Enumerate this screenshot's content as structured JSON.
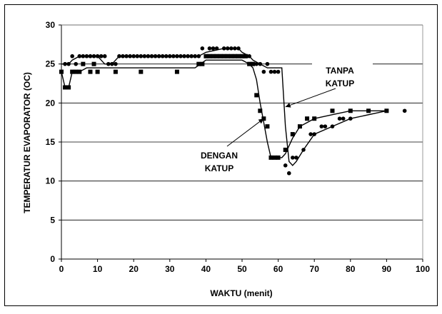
{
  "chart_data": {
    "type": "scatter",
    "xlabel": "WAKTU (menit)",
    "ylabel": "TEMPERATUR EVAPORATOR (OC)",
    "xlim": [
      0,
      100
    ],
    "ylim": [
      0,
      30
    ],
    "x_ticks": [
      "0",
      "10",
      "20",
      "30",
      "40",
      "50",
      "60",
      "70",
      "80",
      "90",
      "100"
    ],
    "y_ticks": [
      "0",
      "5",
      "10",
      "15",
      "20",
      "25",
      "30"
    ],
    "grid": "horizontal",
    "legend": "none",
    "annotations": [
      {
        "lines": [
          "TANPA",
          "KATUP"
        ],
        "points_to": [
          62,
          19.5
        ]
      },
      {
        "lines": [
          "DENGAN",
          "KATUP"
        ],
        "points_to": [
          56,
          18
        ]
      }
    ],
    "series": [
      {
        "marker": "square",
        "trend": [
          [
            0,
            24
          ],
          [
            1,
            22
          ],
          [
            2,
            22
          ],
          [
            3,
            24
          ],
          [
            5,
            24
          ],
          [
            7,
            24.5
          ],
          [
            10,
            24.5
          ],
          [
            20,
            24.5
          ],
          [
            30,
            24.5
          ],
          [
            37,
            24.5
          ],
          [
            40,
            25.5
          ],
          [
            45,
            25.5
          ],
          [
            50,
            25.5
          ],
          [
            52,
            25
          ],
          [
            53,
            24.5
          ],
          [
            54,
            23
          ],
          [
            55,
            20
          ],
          [
            56,
            17.5
          ],
          [
            57,
            15
          ],
          [
            58,
            13
          ],
          [
            61,
            13
          ],
          [
            62,
            13.5
          ],
          [
            64,
            15.5
          ],
          [
            66,
            17
          ],
          [
            68,
            17.5
          ],
          [
            70,
            18
          ],
          [
            75,
            18.5
          ],
          [
            80,
            19
          ],
          [
            90,
            19
          ]
        ],
        "points": [
          [
            0,
            24
          ],
          [
            1,
            22
          ],
          [
            2,
            22
          ],
          [
            3,
            24
          ],
          [
            4,
            24
          ],
          [
            5,
            24
          ],
          [
            6,
            25
          ],
          [
            8,
            24
          ],
          [
            9,
            25
          ],
          [
            10,
            24
          ],
          [
            15,
            24
          ],
          [
            22,
            24
          ],
          [
            32,
            24
          ],
          [
            38,
            25
          ],
          [
            39,
            25
          ],
          [
            40,
            26
          ],
          [
            41,
            26
          ],
          [
            42,
            26
          ],
          [
            43,
            26
          ],
          [
            44,
            26
          ],
          [
            45,
            26
          ],
          [
            46,
            26
          ],
          [
            47,
            26
          ],
          [
            48,
            26
          ],
          [
            49,
            26
          ],
          [
            50,
            26
          ],
          [
            51,
            26
          ],
          [
            52,
            25
          ],
          [
            53,
            25
          ],
          [
            54,
            21
          ],
          [
            55,
            19
          ],
          [
            56,
            18
          ],
          [
            57,
            17
          ],
          [
            58,
            13
          ],
          [
            59,
            13
          ],
          [
            60,
            13
          ],
          [
            62,
            14
          ],
          [
            64,
            16
          ],
          [
            66,
            17
          ],
          [
            68,
            18
          ],
          [
            70,
            18
          ],
          [
            75,
            19
          ],
          [
            80,
            19
          ],
          [
            85,
            19
          ],
          [
            90,
            19
          ]
        ]
      },
      {
        "marker": "circle",
        "trend": [
          [
            0,
            25
          ],
          [
            2,
            25
          ],
          [
            3,
            25.5
          ],
          [
            5,
            26
          ],
          [
            10,
            26
          ],
          [
            12,
            25
          ],
          [
            14,
            25
          ],
          [
            16,
            26
          ],
          [
            20,
            26
          ],
          [
            30,
            26
          ],
          [
            38,
            26
          ],
          [
            40,
            26.5
          ],
          [
            45,
            27
          ],
          [
            49,
            27
          ],
          [
            50,
            26.5
          ],
          [
            52,
            26
          ],
          [
            53,
            25.5
          ],
          [
            55,
            25
          ],
          [
            57,
            24.5
          ],
          [
            60,
            24.5
          ],
          [
            61,
            24.5
          ],
          [
            62,
            17
          ],
          [
            63,
            12.5
          ],
          [
            64,
            12
          ],
          [
            65,
            12.5
          ],
          [
            67,
            14
          ],
          [
            70,
            16
          ],
          [
            75,
            17
          ],
          [
            80,
            18
          ],
          [
            90,
            19
          ]
        ],
        "points": [
          [
            1,
            25
          ],
          [
            2,
            25
          ],
          [
            3,
            26
          ],
          [
            4,
            25
          ],
          [
            5,
            26
          ],
          [
            6,
            26
          ],
          [
            7,
            26
          ],
          [
            8,
            26
          ],
          [
            9,
            26
          ],
          [
            10,
            26
          ],
          [
            11,
            26
          ],
          [
            12,
            26
          ],
          [
            13,
            25
          ],
          [
            14,
            25
          ],
          [
            15,
            25
          ],
          [
            16,
            26
          ],
          [
            17,
            26
          ],
          [
            18,
            26
          ],
          [
            19,
            26
          ],
          [
            20,
            26
          ],
          [
            21,
            26
          ],
          [
            22,
            26
          ],
          [
            23,
            26
          ],
          [
            24,
            26
          ],
          [
            25,
            26
          ],
          [
            26,
            26
          ],
          [
            27,
            26
          ],
          [
            28,
            26
          ],
          [
            29,
            26
          ],
          [
            30,
            26
          ],
          [
            31,
            26
          ],
          [
            32,
            26
          ],
          [
            33,
            26
          ],
          [
            34,
            26
          ],
          [
            35,
            26
          ],
          [
            36,
            26
          ],
          [
            37,
            26
          ],
          [
            38,
            26
          ],
          [
            39,
            27
          ],
          [
            40,
            26
          ],
          [
            41,
            27
          ],
          [
            42,
            27
          ],
          [
            43,
            27
          ],
          [
            44,
            26
          ],
          [
            45,
            27
          ],
          [
            46,
            27
          ],
          [
            47,
            27
          ],
          [
            48,
            27
          ],
          [
            49,
            27
          ],
          [
            50,
            26
          ],
          [
            51,
            26
          ],
          [
            52,
            26
          ],
          [
            53,
            25
          ],
          [
            54,
            25
          ],
          [
            55,
            25
          ],
          [
            56,
            24
          ],
          [
            57,
            25
          ],
          [
            58,
            24
          ],
          [
            59,
            24
          ],
          [
            60,
            24
          ],
          [
            62,
            12
          ],
          [
            63,
            11
          ],
          [
            64,
            13
          ],
          [
            65,
            13
          ],
          [
            67,
            14
          ],
          [
            69,
            16
          ],
          [
            70,
            16
          ],
          [
            72,
            17
          ],
          [
            73,
            17
          ],
          [
            75,
            17
          ],
          [
            77,
            18
          ],
          [
            78,
            18
          ],
          [
            80,
            18
          ],
          [
            90,
            19
          ],
          [
            95,
            19
          ]
        ]
      }
    ]
  }
}
